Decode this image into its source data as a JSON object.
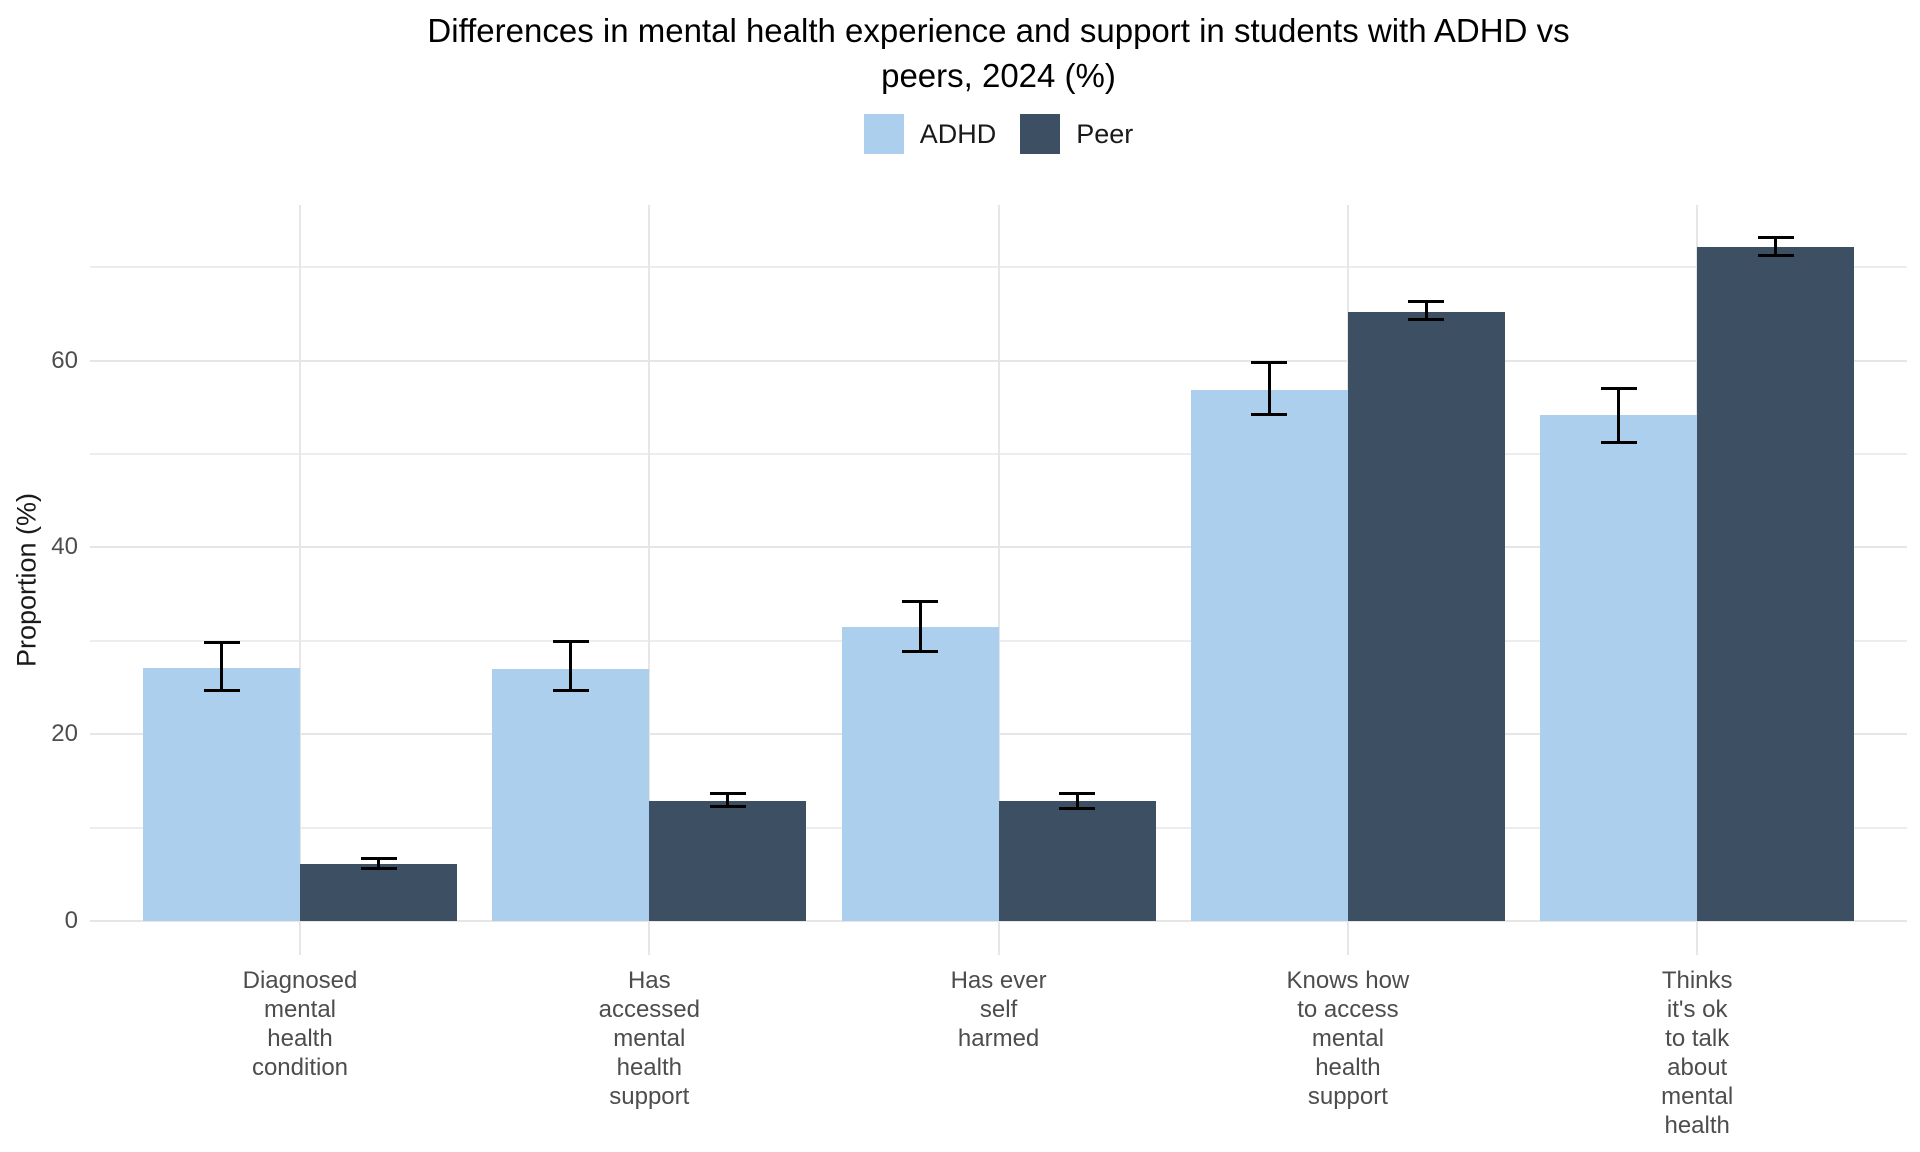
{
  "chart_data": {
    "type": "bar",
    "title": "Differences in mental health experience and support in students with ADHD vs peers, 2024 (%)",
    "title_lines": [
      "Differences in mental health experience and support in students with ADHD vs",
      "peers, 2024 (%)"
    ],
    "ylabel": "Proportion (%)",
    "xlabel": "",
    "ylim": [
      0,
      76.5
    ],
    "grid": true,
    "legend_position": "top",
    "y_ticks": [
      0,
      20,
      40,
      60
    ],
    "y_minor_ticks": [
      10,
      30,
      50,
      70
    ],
    "categories": [
      [
        "Diagnosed",
        "mental",
        "health",
        "condition"
      ],
      [
        "Has",
        "accessed",
        "mental",
        "health",
        "support"
      ],
      [
        "Has ever",
        "self",
        "harmed"
      ],
      [
        "Knows how",
        "to access",
        "mental",
        "health",
        "support"
      ],
      [
        "Thinks",
        "it's ok",
        "to talk",
        "about",
        "mental",
        "health"
      ]
    ],
    "series": [
      {
        "name": "ADHD",
        "color": "#adcfee",
        "values": [
          27.1,
          27.0,
          31.5,
          56.8,
          54.2
        ],
        "ci_low": [
          24.7,
          24.7,
          28.9,
          54.2,
          51.2
        ],
        "ci_high": [
          29.8,
          29.9,
          34.2,
          59.8,
          57.0
        ]
      },
      {
        "name": "Peer",
        "color": "#3d4f63",
        "values": [
          6.1,
          12.8,
          12.8,
          65.2,
          72.2
        ],
        "ci_low": [
          5.6,
          12.3,
          12.0,
          64.4,
          71.2
        ],
        "ci_high": [
          6.7,
          13.7,
          13.6,
          66.3,
          73.2
        ]
      }
    ],
    "error_bar_color": "#000000"
  }
}
